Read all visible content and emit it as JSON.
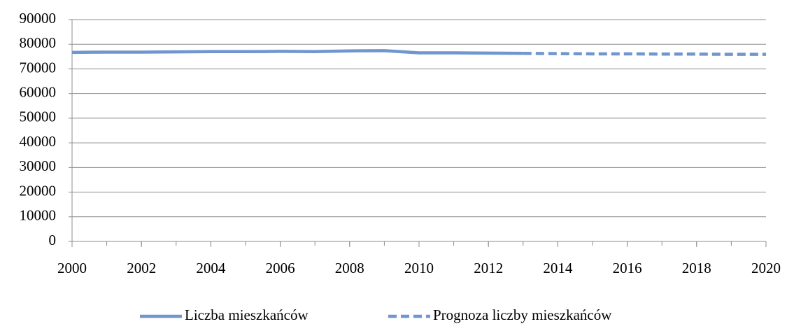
{
  "chart_data": {
    "type": "line",
    "x": [
      2000,
      2001,
      2002,
      2003,
      2004,
      2005,
      2006,
      2007,
      2008,
      2009,
      2010,
      2011,
      2012,
      2013,
      2014,
      2015,
      2016,
      2017,
      2018,
      2019,
      2020
    ],
    "series": [
      {
        "name": "Liczba mieszkańców",
        "color": "#7096cf",
        "dash": false,
        "values": [
          76700,
          76800,
          76800,
          76900,
          77000,
          77000,
          77100,
          77000,
          77300,
          77400,
          76500,
          76500,
          76400,
          76300,
          null,
          null,
          null,
          null,
          null,
          null,
          null
        ]
      },
      {
        "name": "Prognoza liczby mieszkańców",
        "color": "#7096cf",
        "dash": true,
        "values": [
          null,
          null,
          null,
          null,
          null,
          null,
          null,
          null,
          null,
          null,
          null,
          null,
          null,
          76300,
          76200,
          76100,
          76100,
          76000,
          76000,
          75900,
          75900
        ]
      }
    ],
    "xlim": [
      2000,
      2020
    ],
    "xticks": [
      2000,
      2002,
      2004,
      2006,
      2008,
      2010,
      2012,
      2014,
      2016,
      2018,
      2020
    ],
    "ylim": [
      0,
      90000
    ],
    "yticks": [
      0,
      10000,
      20000,
      30000,
      40000,
      50000,
      60000,
      70000,
      80000,
      90000
    ],
    "grid": true,
    "legend": "bottom"
  }
}
